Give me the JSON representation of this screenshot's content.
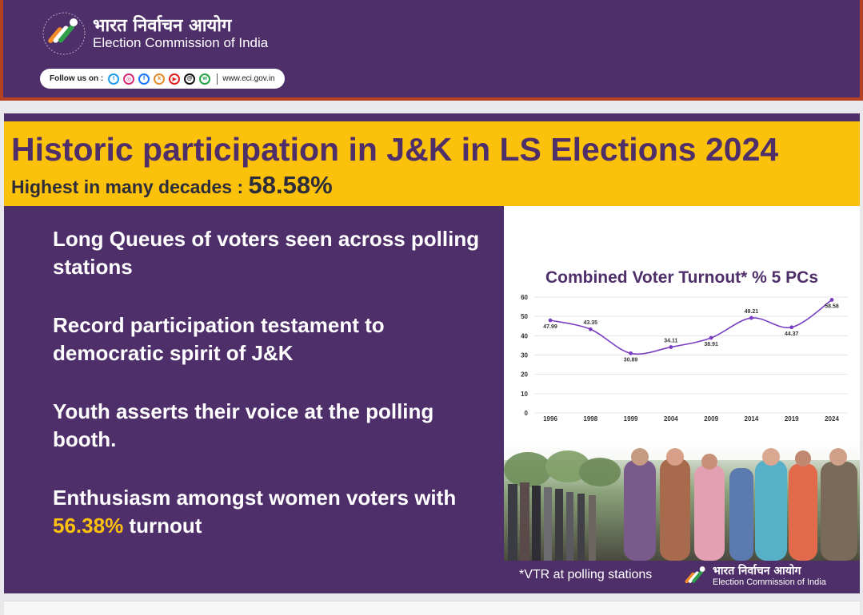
{
  "header": {
    "brand_hindi": "भारत निर्वाचन आयोग",
    "brand_english": "Election Commission of India",
    "follow_label": "Follow us on :",
    "social_icons": [
      "twitter-icon",
      "instagram-icon",
      "facebook-icon",
      "koo-icon",
      "youtube-icon",
      "threads-icon",
      "whatsapp-icon"
    ],
    "website": "www.eci.gov.in"
  },
  "banner": {
    "title": "Historic participation in J&K in LS Elections 2024",
    "subtitle": "Highest in many decades :",
    "highlight": "58.58%"
  },
  "points": [
    {
      "text": "Long Queues of voters seen across polling stations"
    },
    {
      "text": "Record participation testament to democratic spirit of J&K"
    },
    {
      "text": "Youth asserts their voice at the polling booth."
    },
    {
      "text_before": "Enthusiasm amongst women voters with ",
      "highlight": "56.38%",
      "text_after": " turnout"
    }
  ],
  "chart_data": {
    "type": "line",
    "title": "Combined Voter Turnout* % 5 PCs",
    "categories": [
      "1996",
      "1998",
      "1999",
      "2004",
      "2009",
      "2014",
      "2019",
      "2024"
    ],
    "series": [
      {
        "values": [
          47.99,
          43.35,
          30.89,
          34.11,
          38.91,
          49.21,
          44.37,
          58.58
        ]
      }
    ],
    "data_labels": [
      "47.99",
      "43.35",
      "30.89",
      "34.11",
      "38.91",
      "49.21",
      "44.37",
      "58.58"
    ],
    "ylim": [
      0,
      60
    ],
    "yticks": [
      0,
      10,
      20,
      30,
      40,
      50,
      60
    ],
    "ytick_labels": [
      "0",
      "10",
      "20",
      "30",
      "40",
      "50",
      "60"
    ],
    "grid": true,
    "line_color": "#7b3fc4"
  },
  "footer": {
    "note": "*VTR at polling stations",
    "brand_hindi": "भारत निर्वाचन आयोग",
    "brand_english": "Election Commission of India"
  },
  "colors": {
    "purple": "#4f2f6a",
    "yellow": "#fcc10b",
    "header_border": "#b6401f"
  }
}
